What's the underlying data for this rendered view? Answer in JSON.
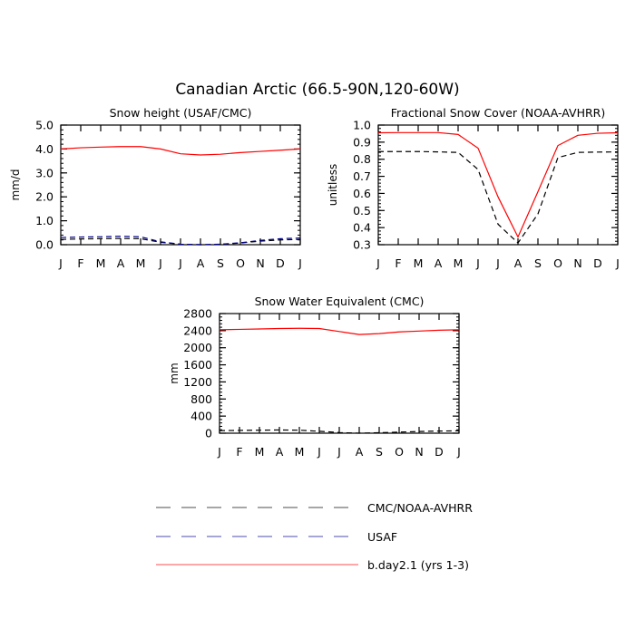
{
  "title": "Canadian Arctic (66.5-90N,120-60W)",
  "months": [
    "J",
    "F",
    "M",
    "A",
    "M",
    "J",
    "J",
    "A",
    "S",
    "O",
    "N",
    "D",
    "J"
  ],
  "chart_data": [
    {
      "type": "line",
      "title": "Snow height (USAF/CMC)",
      "ylabel": "mm/d",
      "ylim": [
        0,
        5
      ],
      "yticks": [
        0,
        1,
        2,
        3,
        4,
        5
      ],
      "ytick_labels": [
        "0.0",
        "1.0",
        "2.0",
        "3.0",
        "4.0",
        "5.0"
      ],
      "series": [
        {
          "name": "b.day2.1 (yrs 1-3)",
          "color": "#ff0000",
          "dash": "",
          "values": [
            4.0,
            4.05,
            4.08,
            4.1,
            4.1,
            4.0,
            3.8,
            3.75,
            3.78,
            3.85,
            3.9,
            3.95,
            4.0
          ]
        },
        {
          "name": "USAF",
          "color": "#00008b",
          "dash": "6,4",
          "values": [
            0.3,
            0.32,
            0.33,
            0.35,
            0.33,
            0.12,
            0.02,
            0.0,
            0.02,
            0.08,
            0.18,
            0.25,
            0.28
          ]
        },
        {
          "name": "CMC/NOAA-AVHRR",
          "color": "#000000",
          "dash": "6,4",
          "values": [
            0.22,
            0.24,
            0.25,
            0.26,
            0.25,
            0.1,
            0.02,
            0.0,
            0.01,
            0.07,
            0.15,
            0.2,
            0.22
          ]
        }
      ]
    },
    {
      "type": "line",
      "title": "Fractional Snow Cover (NOAA-AVHRR)",
      "ylabel": "unitless",
      "ylim": [
        0.3,
        1.0
      ],
      "yticks": [
        0.3,
        0.4,
        0.5,
        0.6,
        0.7,
        0.8,
        0.9,
        1.0
      ],
      "ytick_labels": [
        "0.3",
        "0.4",
        "0.5",
        "0.6",
        "0.7",
        "0.8",
        "0.9",
        "1.0"
      ],
      "series": [
        {
          "name": "b.day2.1 (yrs 1-3)",
          "color": "#ff0000",
          "dash": "",
          "values": [
            0.955,
            0.956,
            0.956,
            0.956,
            0.945,
            0.865,
            0.58,
            0.345,
            0.61,
            0.88,
            0.94,
            0.952,
            0.955
          ]
        },
        {
          "name": "CMC/NOAA-AVHRR",
          "color": "#000000",
          "dash": "6,4",
          "values": [
            0.845,
            0.845,
            0.845,
            0.843,
            0.84,
            0.74,
            0.42,
            0.31,
            0.48,
            0.81,
            0.84,
            0.842,
            0.843
          ]
        }
      ]
    },
    {
      "type": "line",
      "title": "Snow Water Equivalent (CMC)",
      "ylabel": "mm",
      "ylim": [
        0,
        2800
      ],
      "yticks": [
        0,
        400,
        800,
        1200,
        1600,
        2000,
        2400,
        2800
      ],
      "ytick_labels": [
        "0",
        "400",
        "800",
        "1200",
        "1600",
        "2000",
        "2400",
        "2800"
      ],
      "series": [
        {
          "name": "b.day2.1 (yrs 1-3)",
          "color": "#ff0000",
          "dash": "",
          "values": [
            2420,
            2430,
            2440,
            2450,
            2455,
            2450,
            2380,
            2310,
            2330,
            2370,
            2390,
            2410,
            2420
          ]
        },
        {
          "name": "CMC/NOAA-AVHRR",
          "color": "#000000",
          "dash": "6,4",
          "values": [
            60,
            65,
            70,
            75,
            70,
            45,
            15,
            0,
            10,
            25,
            40,
            50,
            55
          ]
        }
      ]
    }
  ],
  "legend": [
    {
      "label": "CMC/NOAA-AVHRR",
      "color": "#000000",
      "dash": "16,12"
    },
    {
      "label": "USAF",
      "color": "#00008b",
      "dash": "16,12"
    },
    {
      "label": "b.day2.1 (yrs 1-3)",
      "color": "#ff0000",
      "dash": ""
    }
  ]
}
